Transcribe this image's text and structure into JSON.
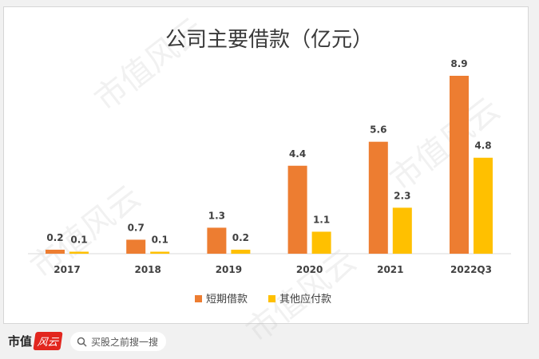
{
  "chart_data": {
    "type": "bar",
    "title": "公司主要借款（亿元）",
    "categories": [
      "2017",
      "2018",
      "2019",
      "2020",
      "2021",
      "2022Q3"
    ],
    "series": [
      {
        "name": "短期借款",
        "values": [
          0.2,
          0.7,
          1.3,
          4.4,
          5.6,
          8.9
        ],
        "color": "#ed7d31"
      },
      {
        "name": "其他应付款",
        "values": [
          0.1,
          0.1,
          0.2,
          1.1,
          2.3,
          4.8
        ],
        "color": "#ffc000"
      }
    ],
    "ylim": [
      0,
      8.9
    ],
    "legend_position": "bottom",
    "grid": false,
    "data_labels": true
  },
  "watermark_text": "市值风云",
  "footer": {
    "brand": "市值",
    "brand_seal": "风云",
    "search_placeholder": "买股之前搜一搜"
  },
  "icons": {
    "search": "search-icon"
  }
}
